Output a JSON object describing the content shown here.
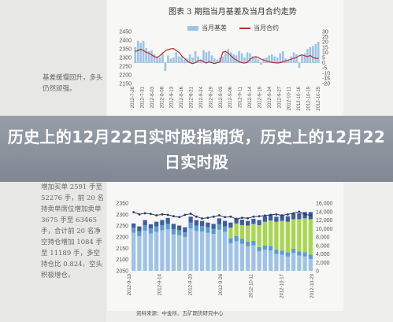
{
  "article": {
    "headline": "历史上的12月22日实时股指期货，历史上的12月22日实时股",
    "side_text_top": "基差缓慢回升，多头仍然顽强。",
    "side_text_bottom": "增加买单 2591 手至 52276 手，前 20 名持卖单席位增加卖单 3675 手至 63465 手，合计前 20 名净空持仓增加 1084 手至 11189 手，多空持仓比 0.824，空头积极增仓。",
    "source_text": "资料来源：中金所、五矿期货研究中心"
  },
  "colors": {
    "bar_blue": "#9ec3e6",
    "line_red": "#b8302f",
    "bar_green": "#a8d64e",
    "navy": "#2b3a6b",
    "bar_mid_blue": "#5b9bd5",
    "bar_deep_blue": "#3e5d9e"
  },
  "chart_data": [
    {
      "type": "bar",
      "title": "图表 3  期指当月基差及当月合约走势",
      "legend": [
        "当月基差",
        "当月合约"
      ],
      "left_ylim": [
        2150,
        2450
      ],
      "left_ticks": [
        "2450",
        "2400",
        "2350",
        "2300",
        "2250",
        "2200",
        "2150"
      ],
      "right_ylim": [
        -20,
        30
      ],
      "right_ticks": [
        "30",
        "25",
        "20",
        "15",
        "10",
        "5",
        "0",
        "-5",
        "-10",
        "-15",
        "-20"
      ],
      "x_labels": [
        "2012-7-26",
        "2012-7-31",
        "2012-8-03",
        "2012-8-08",
        "2012-8-13",
        "2012-8-16",
        "2012-8-21",
        "2012-8-24",
        "2012-8-29",
        "2012-9-03",
        "2012-9-06",
        "2012-9-11",
        "2012-9-14",
        "2012-9-19",
        "2012-9-24",
        "2012-9-27",
        "2012-10-11",
        "2012-10-16",
        "2012-10-19",
        "2012-10-25"
      ],
      "series": [
        {
          "name": "当月基差",
          "kind": "bar",
          "axis": "right",
          "values": [
            15,
            21,
            19,
            21,
            14,
            11,
            12,
            8,
            6,
            5,
            9,
            -8,
            7,
            4,
            5,
            10,
            6,
            6,
            3,
            4,
            8,
            5,
            11,
            6,
            3,
            12,
            10,
            11,
            7,
            4,
            3,
            5,
            6,
            9,
            13,
            10,
            8,
            7,
            11,
            9,
            5,
            10,
            9,
            6,
            5,
            3,
            -2,
            4,
            5,
            7,
            8,
            6,
            5,
            9,
            11,
            4,
            3,
            6,
            10,
            8,
            -5,
            7,
            9,
            13,
            15,
            16,
            18,
            20
          ]
        },
        {
          "name": "当月合约",
          "kind": "line",
          "axis": "left",
          "values": [
            2335,
            2340,
            2348,
            2340,
            2330,
            2325,
            2315,
            2305,
            2300,
            2310,
            2325,
            2338,
            2345,
            2350,
            2352,
            2340,
            2330,
            2310,
            2295,
            2280,
            2270,
            2265,
            2270,
            2280,
            2285,
            2275,
            2268,
            2275,
            2270,
            2265,
            2270,
            2275,
            2330,
            2335,
            2325,
            2310,
            2295,
            2285,
            2275,
            2270,
            2268,
            2272,
            2290,
            2300,
            2305,
            2300,
            2290,
            2285,
            2280,
            2275,
            2272,
            2270,
            2268,
            2270,
            2275,
            2280,
            2285,
            2290,
            2295,
            2300,
            2310,
            2315,
            2310,
            2305,
            2312,
            2300,
            2295,
            2295
          ]
        }
      ]
    },
    {
      "type": "bar",
      "title": "",
      "left_ylim": [
        2050,
        2350
      ],
      "left_ticks": [
        "2350",
        "2300",
        "2250",
        "2200",
        "2150",
        "2100",
        "2050"
      ],
      "right_ylim": [
        0,
        16000
      ],
      "right_ticks": [
        "16,000",
        "14,000",
        "12,000",
        "10,000",
        "8,000",
        "6,000",
        "4,000",
        "2,000",
        "0"
      ],
      "x_labels": [
        "2012-9-10",
        "2012-9-14",
        "2012-9-20",
        "2012-9-26",
        "2012-10-11",
        "2012-10-17",
        "2012-10-23"
      ],
      "series": [
        {
          "name": "",
          "kind": "bar_blue",
          "axis": "right",
          "values": [
            9000,
            8200,
            9500,
            8800,
            9200,
            9600,
            9800,
            8600,
            8400,
            8000,
            10000,
            9400,
            9300,
            9000,
            8700,
            9700,
            9200,
            6500,
            7000,
            6400,
            5800,
            6000,
            4600,
            5000,
            4800,
            4000,
            3800,
            3400,
            4200,
            3600,
            3400,
            2800
          ]
        },
        {
          "name": "",
          "kind": "bar_mid",
          "axis": "right",
          "values": [
            1200,
            1200,
            1300,
            1200,
            1300,
            1200,
            1300,
            1200,
            1200,
            1100,
            1400,
            1300,
            1300,
            1300,
            1200,
            1300,
            1300,
            1200,
            1200,
            1200,
            1100,
            1100,
            1000,
            1000,
            1100,
            1000,
            1000,
            1000,
            1000,
            1000,
            1000,
            1000
          ]
        },
        {
          "name": "",
          "kind": "bar_green",
          "axis": "right",
          "values": [
            0,
            0,
            0,
            0,
            0,
            0,
            0,
            0,
            0,
            0,
            0,
            0,
            0,
            0,
            0,
            0,
            0,
            2500,
            3000,
            3200,
            3800,
            4000,
            5200,
            5600,
            6000,
            6600,
            7000,
            7200,
            7000,
            7600,
            8000,
            8400
          ]
        },
        {
          "name": "",
          "kind": "bar_top",
          "axis": "right",
          "values": [
            1000,
            1100,
            1200,
            1000,
            1100,
            1200,
            1400,
            1300,
            1100,
            1200,
            1400,
            1300,
            1200,
            1100,
            1200,
            1400,
            1300,
            1200,
            1200,
            1300,
            1100,
            1200,
            1200,
            1300,
            1300,
            1200,
            1300,
            1300,
            1300,
            1400,
            1500,
            1700
          ]
        },
        {
          "name": "",
          "kind": "line",
          "axis": "left",
          "values": [
            2310,
            2300,
            2305,
            2302,
            2296,
            2300,
            2298,
            2292,
            2288,
            2298,
            2303,
            2290,
            2282,
            2285,
            2290,
            2296,
            2288,
            2290,
            2280,
            2285,
            2283,
            2290,
            2292,
            2295,
            2298,
            2300,
            2296,
            2300,
            2305,
            2312,
            2300,
            2296
          ]
        }
      ]
    }
  ]
}
